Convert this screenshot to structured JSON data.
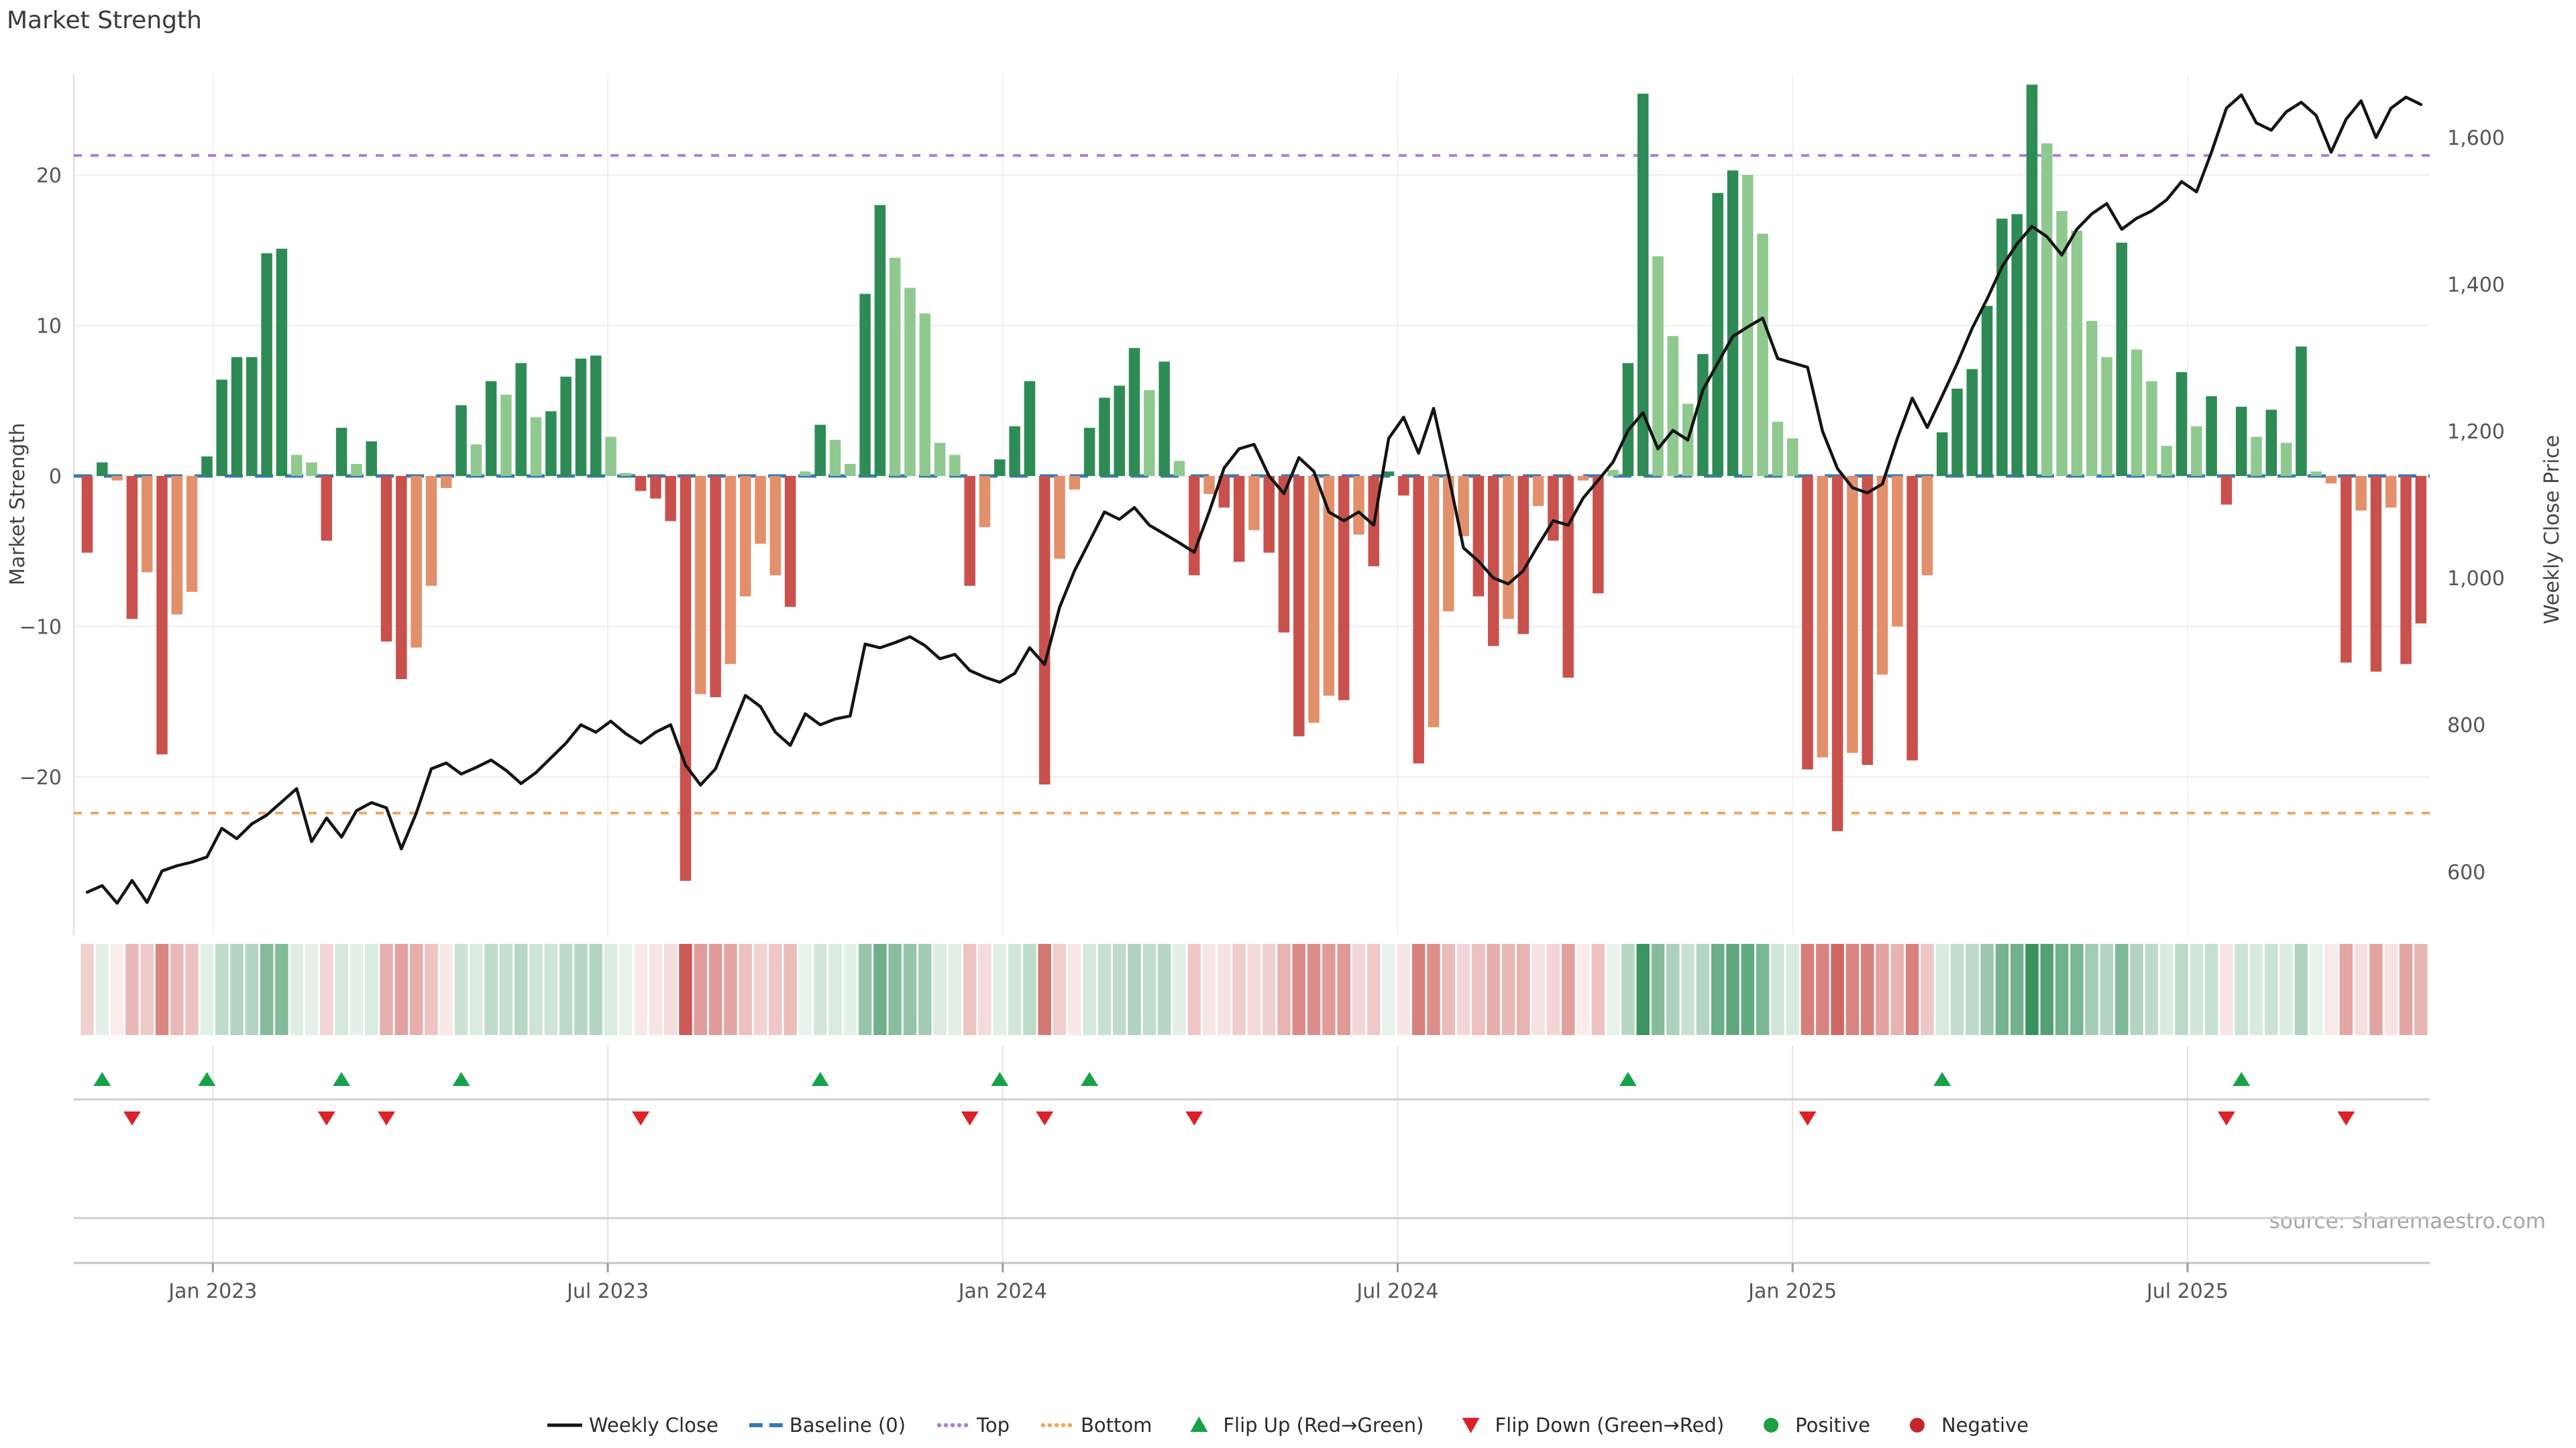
{
  "page": {
    "title": "Market Strength",
    "source": "source: sharemaestro.com"
  },
  "chart_data": {
    "type": "bar",
    "subtype": "combo-weekly-strength-bars-with-close-price-line-heatmap-and-flip-markers",
    "title": "Market Strength",
    "xlabel": "",
    "x_axis": {
      "tick_labels": [
        "Jan 2023",
        "Jul 2023",
        "Jan 2024",
        "Jul 2024",
        "Jan 2025",
        "Jul 2025"
      ],
      "tick_week_index": [
        8.4,
        34.8,
        61.2,
        87.6,
        114.0,
        140.4
      ]
    },
    "y_left": {
      "label": "Market Strength",
      "ticks": [
        -20,
        -10,
        0,
        10,
        20
      ],
      "tick_labels": [
        "−20",
        "−10",
        "0",
        "10",
        "20"
      ],
      "range": [
        -30.5,
        26.7
      ]
    },
    "y_right": {
      "label": "Weekly Close Price",
      "ticks": [
        600,
        800,
        1000,
        1200,
        1400,
        1600
      ],
      "tick_labels": [
        "600",
        "800",
        "1,000",
        "1,200",
        "1,400",
        "1,600"
      ],
      "range": [
        513,
        1687
      ]
    },
    "thresholds": {
      "baseline": 0,
      "top": 21.3,
      "bottom": -22.4
    },
    "bars": {
      "values": [
        -5.1,
        0.9,
        -0.3,
        -9.5,
        -6.4,
        -18.5,
        -9.2,
        -7.7,
        1.3,
        6.4,
        7.9,
        7.9,
        14.8,
        15.1,
        1.4,
        0.9,
        -4.3,
        3.2,
        0.8,
        2.3,
        -11.0,
        -13.5,
        -11.4,
        -7.3,
        -0.8,
        4.7,
        2.1,
        6.3,
        5.4,
        7.5,
        3.9,
        4.3,
        6.6,
        7.8,
        8.0,
        2.6,
        0.2,
        -1.0,
        -1.5,
        -3.0,
        -26.9,
        -14.5,
        -14.7,
        -12.5,
        -8.0,
        -4.5,
        -6.6,
        -8.7,
        0.3,
        3.4,
        2.4,
        0.8,
        12.1,
        18.0,
        14.5,
        12.5,
        10.8,
        2.2,
        1.4,
        -7.3,
        -3.4,
        1.1,
        3.3,
        6.3,
        -20.5,
        -5.5,
        -0.9,
        3.2,
        5.2,
        6.0,
        8.5,
        5.7,
        7.6,
        1.0,
        -6.6,
        -1.2,
        -2.1,
        -5.7,
        -3.6,
        -5.1,
        -10.4,
        -17.3,
        -16.4,
        -14.6,
        -14.9,
        -3.9,
        -6.0,
        0.3,
        -1.3,
        -19.1,
        -16.7,
        -9.0,
        -4.0,
        -8.0,
        -11.3,
        -9.5,
        -10.5,
        -2.0,
        -4.3,
        -13.4,
        -0.3,
        -7.8,
        0.4,
        7.5,
        25.4,
        14.6,
        9.3,
        4.8,
        8.1,
        18.8,
        20.3,
        20.0,
        16.1,
        3.6,
        2.5,
        -19.5,
        -18.7,
        -23.6,
        -18.4,
        -19.2,
        -13.2,
        -10.0,
        -18.9,
        -6.6,
        2.9,
        5.8,
        7.1,
        11.3,
        17.1,
        17.4,
        26.0,
        22.1,
        17.6,
        16.3,
        10.3,
        7.9,
        15.5,
        8.4,
        6.3,
        2.0,
        6.9,
        3.3,
        5.3,
        -1.9,
        4.6,
        2.6,
        4.4,
        2.2,
        8.6,
        0.3,
        -0.5,
        -12.4,
        -2.3,
        -13.0,
        -2.1,
        -12.5,
        -9.8
      ],
      "shades": [
        "dr",
        "dg",
        "lr",
        "dr",
        "lr",
        "dr",
        "lr",
        "lr",
        "dg",
        "dg",
        "dg",
        "dg",
        "dg",
        "dg",
        "lg",
        "lg",
        "dr",
        "dg",
        "lg",
        "dg",
        "dr",
        "dr",
        "lr",
        "lr",
        "lr",
        "dg",
        "lg",
        "dg",
        "lg",
        "dg",
        "lg",
        "dg",
        "dg",
        "dg",
        "dg",
        "lg",
        "lg",
        "dr",
        "dr",
        "dr",
        "dr",
        "lr",
        "dr",
        "lr",
        "lr",
        "lr",
        "lr",
        "dr",
        "lg",
        "dg",
        "lg",
        "lg",
        "dg",
        "dg",
        "lg",
        "lg",
        "lg",
        "lg",
        "lg",
        "dr",
        "lr",
        "dg",
        "dg",
        "dg",
        "dr",
        "lr",
        "lr",
        "dg",
        "dg",
        "dg",
        "dg",
        "lg",
        "dg",
        "lg",
        "dr",
        "lr",
        "dr",
        "dr",
        "lr",
        "dr",
        "dr",
        "dr",
        "lr",
        "lr",
        "dr",
        "lr",
        "dr",
        "dg",
        "dr",
        "dr",
        "lr",
        "lr",
        "lr",
        "dr",
        "dr",
        "lr",
        "dr",
        "lr",
        "dr",
        "dr",
        "lr",
        "dr",
        "lg",
        "dg",
        "dg",
        "lg",
        "lg",
        "lg",
        "dg",
        "dg",
        "dg",
        "lg",
        "lg",
        "lg",
        "lg",
        "dr",
        "lr",
        "dr",
        "lr",
        "dr",
        "lr",
        "lr",
        "dr",
        "lr",
        "dg",
        "dg",
        "dg",
        "dg",
        "dg",
        "dg",
        "dg",
        "lg",
        "lg",
        "lg",
        "lg",
        "lg",
        "dg",
        "lg",
        "lg",
        "lg",
        "dg",
        "lg",
        "dg",
        "dr",
        "dg",
        "lg",
        "dg",
        "lg",
        "dg",
        "lg",
        "lr",
        "dr",
        "lr",
        "dr",
        "lr",
        "dr",
        "dr"
      ]
    },
    "weekly_close": [
      572,
      581,
      557,
      588,
      558,
      601,
      608,
      613,
      620,
      659,
      645,
      665,
      677,
      695,
      713,
      641,
      673,
      647,
      683,
      694,
      687,
      631,
      680,
      740,
      748,
      733,
      742,
      752,
      738,
      720,
      735,
      755,
      775,
      800,
      790,
      805,
      788,
      775,
      790,
      800,
      745,
      718,
      740,
      790,
      840,
      825,
      790,
      772,
      815,
      800,
      808,
      812,
      910,
      905,
      912,
      920,
      908,
      890,
      896,
      874,
      865,
      858,
      870,
      905,
      882,
      960,
      1010,
      1050,
      1090,
      1080,
      1096,
      1072,
      1060,
      1048,
      1035,
      1090,
      1150,
      1176,
      1182,
      1139,
      1115,
      1164,
      1145,
      1090,
      1078,
      1090,
      1072,
      1190,
      1219,
      1170,
      1231,
      1140,
      1041,
      1023,
      1000,
      992,
      1010,
      1045,
      1078,
      1072,
      1109,
      1133,
      1158,
      1201,
      1225,
      1176,
      1201,
      1188,
      1256,
      1293,
      1329,
      1342,
      1354,
      1299,
      1293,
      1287,
      1200,
      1149,
      1123,
      1116,
      1128,
      1190,
      1245,
      1205,
      1248,
      1292,
      1340,
      1380,
      1424,
      1455,
      1479,
      1465,
      1440,
      1475,
      1496,
      1510,
      1475,
      1490,
      1500,
      1515,
      1540,
      1526,
      1580,
      1640,
      1658,
      1620,
      1610,
      1635,
      1648,
      1630,
      1580,
      1625,
      1650,
      1600,
      1640,
      1655,
      1645
    ],
    "colors": {
      "bar_dark_green": "#2e8b55",
      "bar_light_green": "#8fc98f",
      "bar_dark_red": "#c9514d",
      "bar_salmon": "#e2906c",
      "line": "#141414",
      "baseline": "#3579b1",
      "top": "#a97fd8",
      "bottom": "#f2a55c",
      "flip_up": "#17a24a",
      "flip_down": "#dd2128",
      "positive_dot": "#1f9e44",
      "negative_dot": "#c1272d",
      "grid": "#ededed",
      "separator": "#cfcfcf"
    },
    "legend": [
      {
        "label": "Weekly Close",
        "swatch": "weekly-close"
      },
      {
        "label": "Baseline (0)",
        "swatch": "baseline"
      },
      {
        "label": "Top",
        "swatch": "top"
      },
      {
        "label": "Bottom",
        "swatch": "bottom"
      },
      {
        "label": "Flip Up (Red→Green)",
        "swatch": "flip-up"
      },
      {
        "label": "Flip Down (Green→Red)",
        "swatch": "flip-down"
      },
      {
        "label": "Positive",
        "swatch": "positive"
      },
      {
        "label": "Negative",
        "swatch": "negative"
      }
    ],
    "source": "source: sharemaestro.com",
    "grid": true,
    "legend_position": "bottom-center"
  }
}
